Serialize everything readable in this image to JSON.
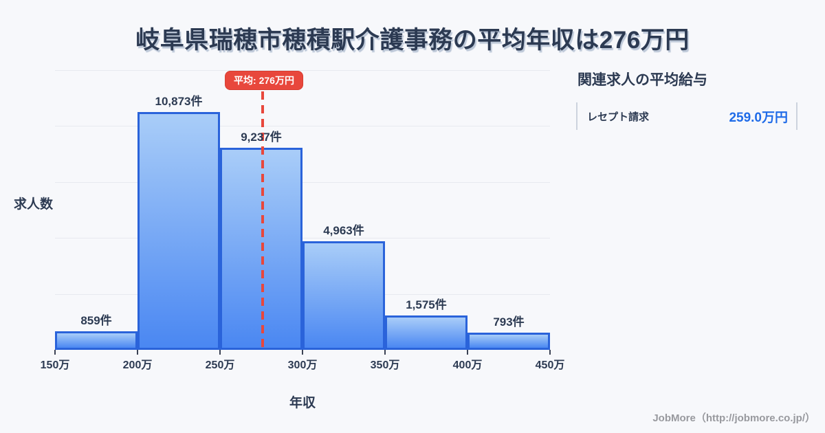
{
  "title": "岐阜県瑞穂市穂積駅介護事務の平均年収は276万円",
  "chart_data": {
    "type": "bar",
    "subtype": "histogram",
    "title": "岐阜県瑞穂市穂積駅介護事務の平均年収は276万円",
    "xlabel": "年収",
    "ylabel": "求人数",
    "x_ticks": [
      "150万",
      "200万",
      "250万",
      "300万",
      "350万",
      "400万",
      "450万"
    ],
    "xlim_man": [
      150,
      450
    ],
    "ylim": [
      0,
      12780
    ],
    "bin_width_man": 50,
    "grid": true,
    "bins": [
      {
        "range": "150万-200万",
        "count": 859,
        "label": "859件"
      },
      {
        "range": "200万-250万",
        "count": 10873,
        "label": "10,873件"
      },
      {
        "range": "250万-300万",
        "count": 9237,
        "label": "9,237件"
      },
      {
        "range": "300万-350万",
        "count": 4963,
        "label": "4,963件"
      },
      {
        "range": "350万-400万",
        "count": 1575,
        "label": "1,575件"
      },
      {
        "range": "400万-450万",
        "count": 793,
        "label": "793件"
      }
    ],
    "average": {
      "value_man": 276,
      "label": "平均: 276万円"
    }
  },
  "side_panel": {
    "heading": "関連求人の平均給与",
    "rows": [
      {
        "label": "レセプト請求",
        "value": "259.0万円"
      }
    ]
  },
  "footer": {
    "credit": "JobMore（http://jobmore.co.jp/）"
  },
  "colors": {
    "background": "#f7f8fb",
    "text_dark": "#2c3a52",
    "bar_gradient_top": "#a9cdf8",
    "bar_gradient_bottom": "#4a87f2",
    "bar_border": "#2a63da",
    "average_red": "#e8473c",
    "salary_value_blue": "#1f6be8",
    "gridline": "#e7e9ef",
    "footer_gray": "#98999e"
  }
}
